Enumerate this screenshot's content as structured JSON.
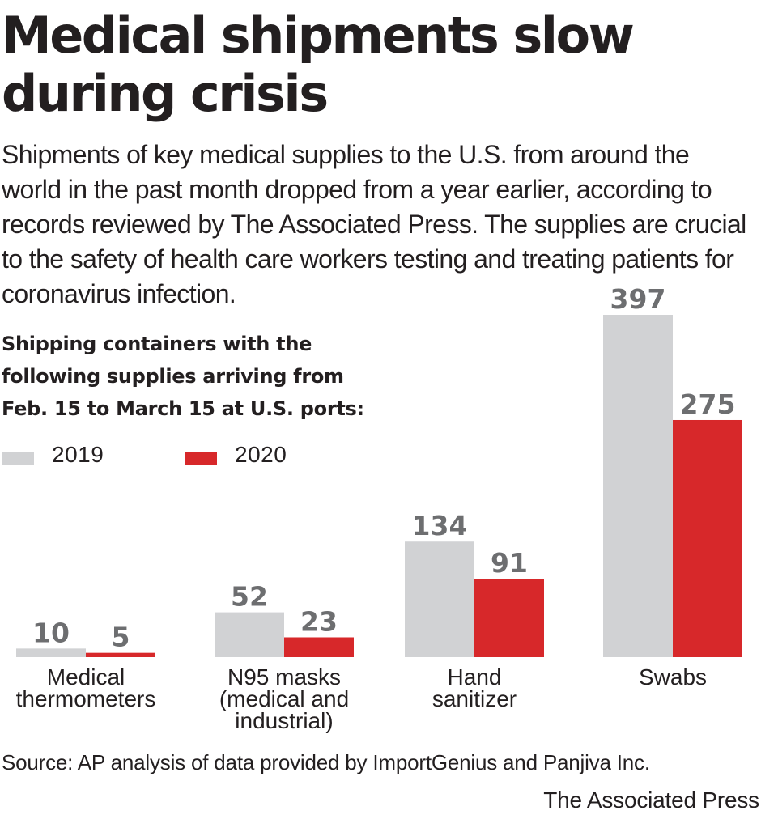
{
  "title": "Medical shipments slow during crisis",
  "subtitle": "Shipments of key medical supplies to the U.S. from around the world in the past month dropped from a year earlier, according to records reviewed by The Associated Press. The supplies are crucial to the safety of health care workers testing and treating patients for coronavirus infection.",
  "chart_heading": "Shipping containers with the following supplies arriving from Feb. 15 to March 15 at U.S. ports:",
  "legend": [
    {
      "label": "2019",
      "color": "#d1d2d4"
    },
    {
      "label": "2020",
      "color": "#d7282a"
    }
  ],
  "source": "Source: AP analysis of data provided by ImportGenius and Panjiva Inc.",
  "credit": "The Associated Press",
  "chart_data": {
    "type": "bar",
    "title": "Medical shipments slow during crisis",
    "categories": [
      [
        "Medical",
        "thermometers"
      ],
      [
        "N95 masks",
        "(medical and",
        "industrial)"
      ],
      [
        "Hand",
        "sanitizer"
      ],
      [
        "Swabs"
      ]
    ],
    "series": [
      {
        "name": "2019",
        "color": "#d1d2d4",
        "values": [
          10,
          52,
          134,
          397
        ]
      },
      {
        "name": "2020",
        "color": "#d7282a",
        "values": [
          5,
          23,
          91,
          275
        ]
      }
    ],
    "ylim": [
      0,
      397
    ],
    "grid": false,
    "legend": "top-left"
  }
}
